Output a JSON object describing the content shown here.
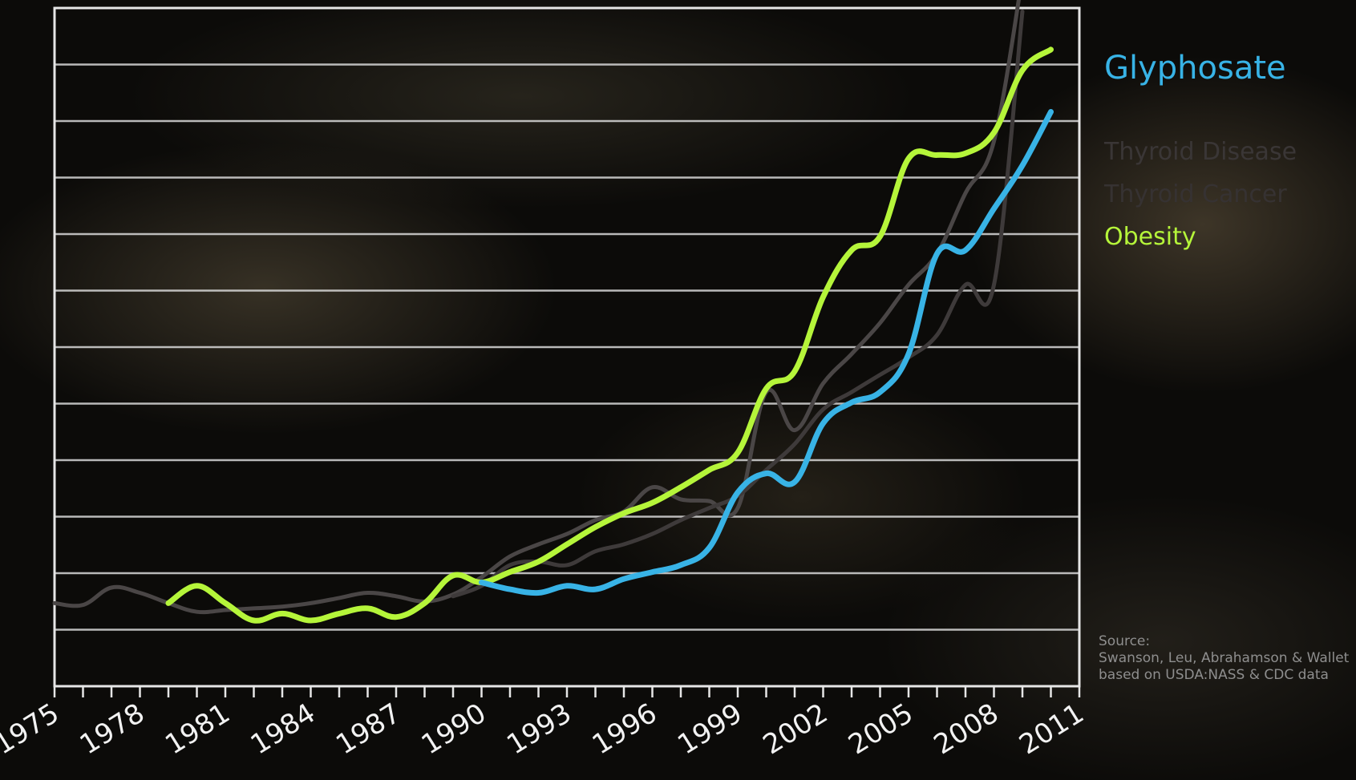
{
  "chart_data": {
    "type": "line",
    "title": "",
    "xlabel": "",
    "ylabel": "",
    "xlim": [
      1975,
      2011
    ],
    "x_ticks": [
      "1975",
      "1978",
      "1981",
      "1984",
      "1987",
      "1990",
      "1993",
      "1996",
      "1999",
      "2002",
      "2005",
      "2008",
      "2011"
    ],
    "grid": true,
    "legend_position": "right",
    "legend": [
      "Glyphosate",
      "Thyroid Disease",
      "Thyroid Cancer",
      "Obesity"
    ],
    "series": [
      {
        "name": "Thyroid Disease",
        "color": "#4a4646",
        "points": [
          [
            1975,
            0.78
          ],
          [
            1976,
            0.77
          ],
          [
            1977,
            0.87
          ],
          [
            1978,
            0.84
          ],
          [
            1979,
            0.78
          ],
          [
            1980,
            0.73
          ],
          [
            1981,
            0.74
          ],
          [
            1982,
            0.75
          ],
          [
            1983,
            0.76
          ],
          [
            1984,
            0.78
          ],
          [
            1985,
            0.81
          ],
          [
            1986,
            0.84
          ],
          [
            1987,
            0.82
          ],
          [
            1988,
            0.79
          ],
          [
            1989,
            0.83
          ],
          [
            1990,
            0.93
          ],
          [
            1991,
            1.05
          ],
          [
            1992,
            1.12
          ],
          [
            1993,
            1.18
          ],
          [
            1994,
            1.26
          ],
          [
            1995,
            1.31
          ],
          [
            1996,
            1.45
          ],
          [
            1997,
            1.38
          ],
          [
            1998,
            1.37
          ],
          [
            1999,
            1.33
          ],
          [
            2000,
            2.0
          ],
          [
            2001,
            1.78
          ],
          [
            2002,
            2.05
          ],
          [
            2003,
            2.22
          ],
          [
            2004,
            2.4
          ],
          [
            2005,
            2.62
          ],
          [
            2006,
            2.8
          ],
          [
            2007,
            3.15
          ],
          [
            2008,
            3.45
          ],
          [
            2009,
            4.4
          ]
        ]
      },
      {
        "name": "Thyroid Cancer",
        "color": "#3e3a3a",
        "points": [
          [
            1989,
            0.82
          ],
          [
            1990,
            0.88
          ],
          [
            1991,
            1.0
          ],
          [
            1992,
            1.02
          ],
          [
            1993,
            1.0
          ],
          [
            1994,
            1.08
          ],
          [
            1995,
            1.12
          ],
          [
            1996,
            1.18
          ],
          [
            1997,
            1.26
          ],
          [
            1998,
            1.33
          ],
          [
            1999,
            1.4
          ],
          [
            2000,
            1.55
          ],
          [
            2001,
            1.7
          ],
          [
            2002,
            1.9
          ],
          [
            2003,
            2.0
          ],
          [
            2004,
            2.1
          ],
          [
            2005,
            2.2
          ],
          [
            2006,
            2.33
          ],
          [
            2007,
            2.62
          ],
          [
            2008,
            2.62
          ],
          [
            2009,
            4.2
          ]
        ]
      },
      {
        "name": "Obesity",
        "color": "#b5f53a",
        "points": [
          [
            1979,
            0.78
          ],
          [
            1980,
            0.88
          ],
          [
            1981,
            0.78
          ],
          [
            1982,
            0.68
          ],
          [
            1983,
            0.72
          ],
          [
            1984,
            0.68
          ],
          [
            1985,
            0.72
          ],
          [
            1986,
            0.75
          ],
          [
            1987,
            0.7
          ],
          [
            1988,
            0.78
          ],
          [
            1989,
            0.94
          ],
          [
            1990,
            0.9
          ],
          [
            1991,
            0.96
          ],
          [
            1992,
            1.02
          ],
          [
            1993,
            1.12
          ],
          [
            1994,
            1.22
          ],
          [
            1995,
            1.3
          ],
          [
            1996,
            1.36
          ],
          [
            1997,
            1.45
          ],
          [
            1998,
            1.55
          ],
          [
            1999,
            1.65
          ],
          [
            2000,
            2.02
          ],
          [
            2001,
            2.12
          ],
          [
            2002,
            2.55
          ],
          [
            2003,
            2.82
          ],
          [
            2004,
            2.9
          ],
          [
            2005,
            3.35
          ],
          [
            2006,
            3.37
          ],
          [
            2007,
            3.38
          ],
          [
            2008,
            3.5
          ],
          [
            2009,
            3.86
          ],
          [
            2010,
            3.98
          ]
        ]
      },
      {
        "name": "Glyphosate",
        "color": "#38b3e6",
        "points": [
          [
            1990,
            0.9
          ],
          [
            1991,
            0.86
          ],
          [
            1992,
            0.84
          ],
          [
            1993,
            0.88
          ],
          [
            1994,
            0.86
          ],
          [
            1995,
            0.92
          ],
          [
            1996,
            0.96
          ],
          [
            1997,
            1.0
          ],
          [
            1998,
            1.1
          ],
          [
            1999,
            1.42
          ],
          [
            2000,
            1.53
          ],
          [
            2001,
            1.48
          ],
          [
            2002,
            1.82
          ],
          [
            2003,
            1.94
          ],
          [
            2004,
            2.0
          ],
          [
            2005,
            2.22
          ],
          [
            2006,
            2.8
          ],
          [
            2007,
            2.82
          ],
          [
            2008,
            3.06
          ],
          [
            2009,
            3.31
          ],
          [
            2010,
            3.62
          ]
        ]
      }
    ]
  },
  "legend": {
    "glyphosate": "Glyphosate",
    "thyroid_disease": "Thyroid Disease",
    "thyroid_cancer": "Thyroid Cancer",
    "obesity": "Obesity"
  },
  "colors": {
    "glyphosate": "#38b3e6",
    "obesity": "#b5f53a",
    "thyroid_disease": "#3a3636",
    "thyroid_cancer": "#363232"
  },
  "source": {
    "label": "Source:",
    "line1": "Swanson, Leu, Abrahamson & Wallet",
    "line2": "based on USDA:NASS & CDC data"
  }
}
